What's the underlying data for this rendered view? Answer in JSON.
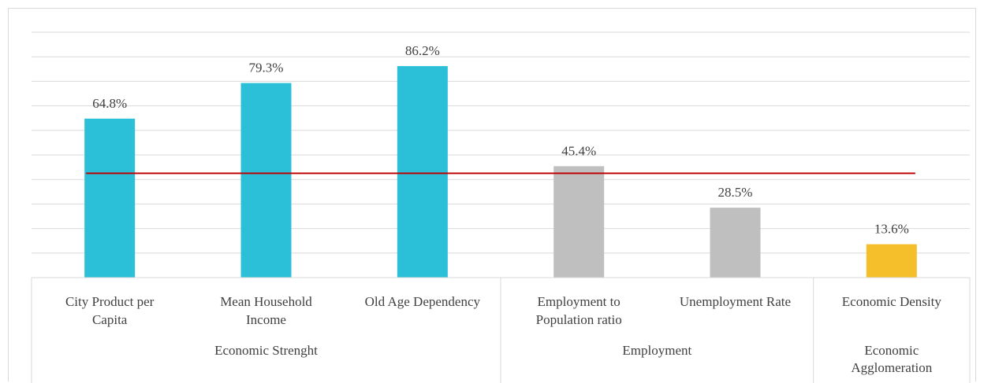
{
  "chart_data": {
    "type": "bar",
    "categories": [
      [
        "City Product per",
        "Capita"
      ],
      [
        "Mean Household",
        "Income"
      ],
      [
        "Old  Age Dependency"
      ],
      [
        "Employment to",
        "Population ratio"
      ],
      [
        "Unemployment Rate"
      ],
      [
        "Economic Density"
      ]
    ],
    "groups": [
      {
        "label": [
          "Economic Strenght"
        ],
        "start": 0,
        "end": 2
      },
      {
        "label": [
          "Employment"
        ],
        "start": 3,
        "end": 4
      },
      {
        "label": [
          "Economic",
          "Agglomeration"
        ],
        "start": 5,
        "end": 5
      }
    ],
    "values": [
      64.8,
      79.3,
      86.2,
      45.4,
      28.5,
      13.6
    ],
    "data_labels": [
      "64.8%",
      "79.3%",
      "86.2%",
      "45.4%",
      "28.5%",
      "13.6%"
    ],
    "bar_colors": [
      "#2bc0d8",
      "#2bc0d8",
      "#2bc0d8",
      "#bfbfbf",
      "#bfbfbf",
      "#f4bf2b"
    ],
    "reference_line": {
      "value": 42.5,
      "color": "#c00000"
    },
    "ylim": [
      0,
      100
    ],
    "gridlines": true,
    "grid_step": 10
  }
}
